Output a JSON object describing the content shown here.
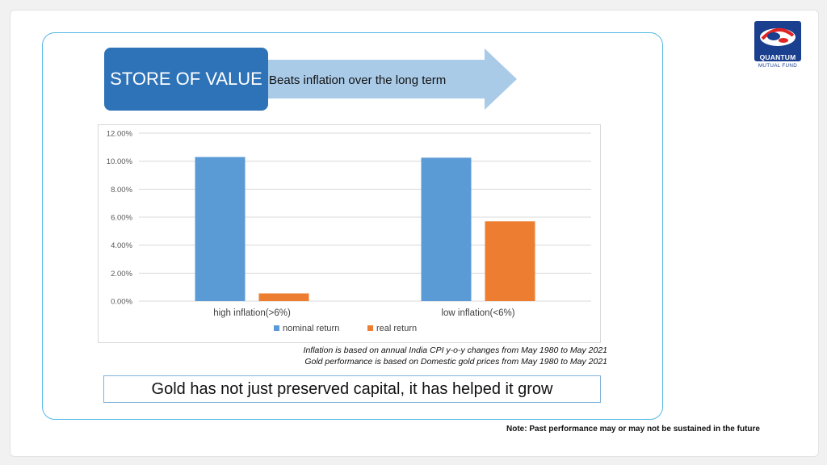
{
  "header": {
    "box_title": "STORE OF VALUE",
    "arrow_text": "Beats inflation over the long term"
  },
  "logo": {
    "brand": "QUANTUM",
    "subtitle": "MUTUAL FUND"
  },
  "chart_data": {
    "type": "bar",
    "categories": [
      "high inflation(>6%)",
      "low inflation(<6%)"
    ],
    "series": [
      {
        "name": "nominal return",
        "values": [
          10.3,
          10.25
        ],
        "color": "#5b9bd5"
      },
      {
        "name": "real return",
        "values": [
          0.55,
          5.7
        ],
        "color": "#ed7d31"
      }
    ],
    "ylim": [
      0,
      12
    ],
    "yticks": [
      0,
      2,
      4,
      6,
      8,
      10,
      12
    ],
    "ytick_labels": [
      "0.00%",
      "2.00%",
      "4.00%",
      "6.00%",
      "8.00%",
      "10.00%",
      "12.00%"
    ],
    "grid": true,
    "legend": "bottom"
  },
  "notes": {
    "line1": "Inflation is based on annual India CPI y-o-y changes from May 1980 to May 2021",
    "line2": "Gold performance is based on Domestic gold prices from May 1980 to May 2021"
  },
  "conclusion": "Gold has not just preserved capital, it has helped it grow",
  "disclaimer": "Note: Past performance may or may not be sustained in the future"
}
